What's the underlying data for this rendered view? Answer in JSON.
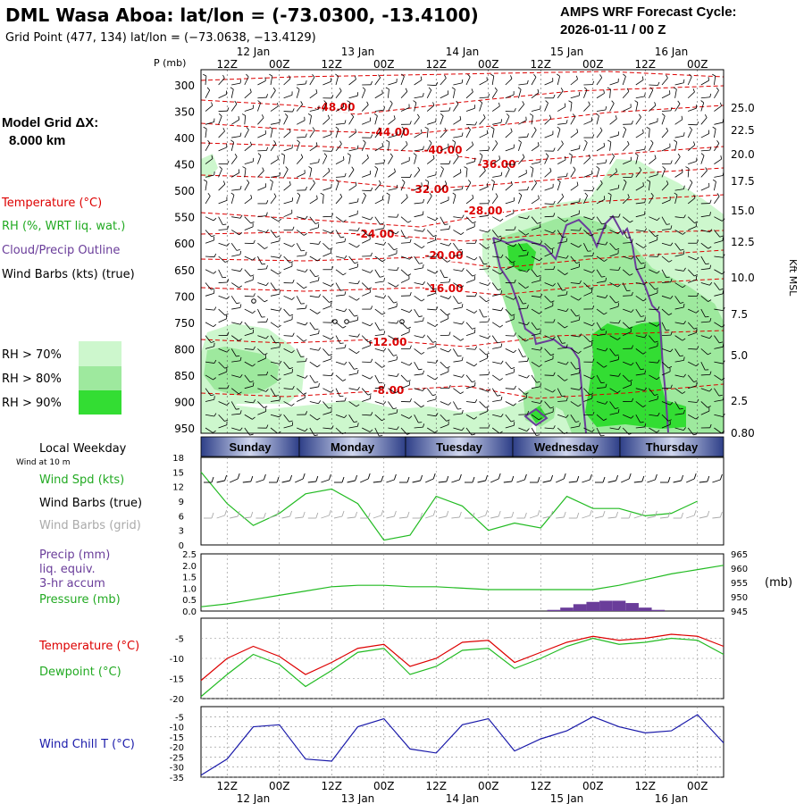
{
  "header": {
    "title": "DML Wasa Aboa:  lat/lon = (-73.0300, -13.4100)",
    "gridpoint": "Grid Point (477, 134) lat/lon = (−73.0638, −13.4129)",
    "cycle_line1": "AMPS WRF Forecast Cycle:",
    "cycle_line2": "2026-01-11 / 00  Z"
  },
  "side": {
    "model_grid_line1": "Model Grid ΔX:",
    "model_grid_line2": "8.000 km",
    "legend_temperature": "Temperature (°C)",
    "legend_rh": "RH (%, WRT liq. wat.)",
    "legend_cloud": "Cloud/Precip Outline",
    "legend_wind": "Wind Barbs (kts) (true)",
    "rh70": "RH > 70%",
    "rh80": "RH > 80%",
    "rh90": "RH > 90%"
  },
  "colors": {
    "rh70": "#cdf7cd",
    "rh80": "#9ee99e",
    "rh90": "#33dd33",
    "temp": "#dd0000",
    "cloud": "#6a3d9a",
    "green": "#22bb22",
    "blue": "#1a1aaa",
    "day_band": "#3c4e96"
  },
  "top_axis": {
    "p_label": "P (mb)",
    "hour_labels": [
      "12Z",
      "00Z",
      "12Z",
      "00Z",
      "12Z",
      "00Z",
      "12Z",
      "00Z",
      "12Z",
      "00Z"
    ],
    "date_labels": [
      "12 Jan",
      "13 Jan",
      "14 Jan",
      "15 Jan",
      "16 Jan"
    ]
  },
  "bottom_axis": {
    "hour_labels": [
      "12Z",
      "00Z",
      "12Z",
      "00Z",
      "12Z",
      "00Z",
      "12Z",
      "00Z",
      "12Z",
      "00Z"
    ],
    "date_labels": [
      "12 Jan",
      "13 Jan",
      "14 Jan",
      "15 Jan",
      "16 Jan"
    ]
  },
  "days": {
    "label": "Local Weekday",
    "names": [
      "Sunday",
      "Monday",
      "Tuesday",
      "Wednesday",
      "Thursday"
    ]
  },
  "chart_data": [
    {
      "type": "time-height cross section",
      "ylabel_left": "P (mb)",
      "pressure_ticks": [
        300,
        350,
        400,
        450,
        500,
        550,
        600,
        650,
        700,
        750,
        800,
        850,
        900,
        950
      ],
      "height_ticks": [
        "25.0",
        "22.5",
        "20.0",
        "17.5",
        "15.0",
        "12.5",
        "10.0",
        "7.5",
        "5.0",
        "2.5",
        "0.80"
      ],
      "ylabel_right": "Kft MSL",
      "temperature_contour_labels": [
        "-48.00",
        "-44.00",
        "-40.00",
        "-36.00",
        "-32.00",
        "-28.00",
        "-24.00",
        "-20.00",
        "-16.00",
        "-12.00",
        "-8.00"
      ]
    },
    {
      "type": "line",
      "title": "Wind Spd (kts)",
      "label_wind": "Wind at 10 m",
      "label_barbs_true": "Wind Barbs (true)",
      "label_barbs_grid": "Wind Barbs (grid)",
      "ylim": [
        0,
        18
      ],
      "yticks": [
        0,
        3,
        6,
        9,
        12,
        15,
        18
      ],
      "x_hours": [
        0,
        6,
        12,
        18,
        24,
        30,
        36,
        42,
        48,
        54,
        60,
        66,
        72,
        78,
        84,
        90,
        96,
        102,
        108,
        114
      ],
      "values": [
        15,
        8.5,
        4,
        6.5,
        10.5,
        11.5,
        8.5,
        1,
        2,
        10,
        8,
        3,
        4.5,
        3.5,
        10,
        7.5,
        7.5,
        6,
        6.5,
        9
      ]
    },
    {
      "type": "line+bar",
      "title": "Precip (mm)",
      "label_line1": "Precip (mm)",
      "label_line2": "liq. equiv.",
      "label_line3": "3-hr accum",
      "label_pressure": "Pressure (mb)",
      "unit_right": "(mb)",
      "ylim_left": [
        0,
        2.5
      ],
      "yticks_left": [
        "0.0",
        "0.5",
        "1.0",
        "1.5",
        "2.0",
        "2.5"
      ],
      "ylim_right": [
        945,
        965
      ],
      "yticks_right": [
        "945",
        "950",
        "955",
        "960",
        "965"
      ],
      "pressure_hours": [
        0,
        6,
        12,
        18,
        24,
        30,
        36,
        42,
        48,
        54,
        60,
        66,
        72,
        78,
        84,
        90,
        96,
        102,
        108,
        114,
        120
      ],
      "pressure_values": [
        946.5,
        947.5,
        949,
        950.5,
        952,
        953.5,
        954,
        954,
        953.5,
        953.5,
        953,
        952.5,
        952.5,
        952.5,
        952.5,
        952.5,
        954,
        956,
        958,
        959.5,
        961
      ],
      "precip_hours": [
        81,
        84,
        87,
        90,
        93,
        96,
        99,
        102,
        105
      ],
      "precip_values": [
        0.05,
        0.15,
        0.3,
        0.4,
        0.45,
        0.45,
        0.35,
        0.15,
        0.05
      ]
    },
    {
      "type": "line",
      "label_temp": "Temperature (°C)",
      "label_dew": "Dewpoint (°C)",
      "ylim": [
        -20,
        0
      ],
      "yticks": [
        "-5",
        "-10",
        "-15",
        "-20"
      ],
      "x_hours": [
        0,
        6,
        12,
        18,
        24,
        30,
        36,
        42,
        48,
        54,
        60,
        66,
        72,
        78,
        84,
        90,
        96,
        102,
        108,
        114,
        120
      ],
      "temperature": [
        -15.5,
        -10,
        -7,
        -9.5,
        -14,
        -11,
        -7.5,
        -6.5,
        -12,
        -10,
        -6,
        -5.5,
        -11,
        -8.5,
        -6,
        -4.5,
        -5.5,
        -5,
        -4,
        -4.5,
        -7
      ],
      "dewpoint": [
        -19.5,
        -14,
        -9,
        -11.5,
        -17,
        -13,
        -8.5,
        -7.5,
        -14,
        -12,
        -8,
        -7.5,
        -12.5,
        -10,
        -7,
        -5,
        -6.5,
        -6,
        -5,
        -5.5,
        -9
      ]
    },
    {
      "type": "line",
      "label_windchill": "Wind Chill T (°C)",
      "ylim": [
        -35,
        0
      ],
      "yticks": [
        "-5",
        "-10",
        "-15",
        "-20",
        "-25",
        "-30",
        "-35"
      ],
      "x_hours": [
        0,
        6,
        12,
        18,
        24,
        30,
        36,
        42,
        48,
        54,
        60,
        66,
        72,
        78,
        84,
        90,
        96,
        102,
        108,
        114,
        120
      ],
      "windchill": [
        -34,
        -26,
        -10,
        -9,
        -26,
        -27,
        -10,
        -6,
        -21,
        -23,
        -9,
        -6,
        -22,
        -16,
        -12,
        -5,
        -10,
        -13,
        -12,
        -4,
        -18
      ]
    }
  ]
}
